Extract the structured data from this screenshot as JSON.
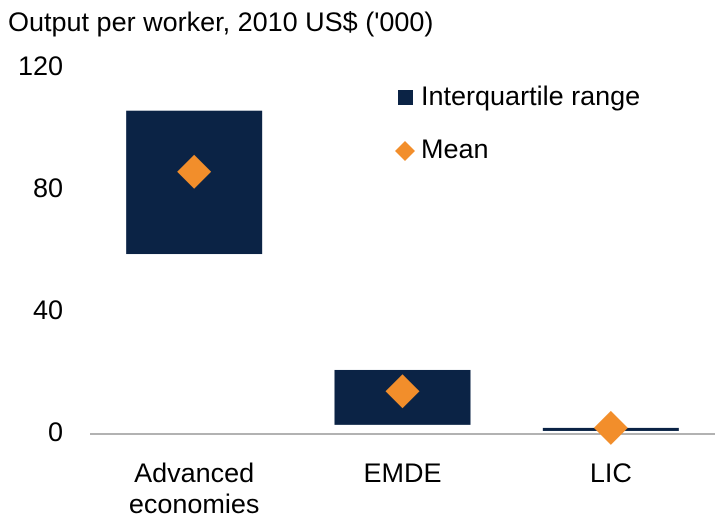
{
  "chart_data": {
    "type": "range_bar",
    "title": "Output per worker, 2010 US$ ('000)",
    "categories": [
      "Advanced economies",
      "EMDE",
      "LIC"
    ],
    "series": [
      {
        "name": "Interquartile range",
        "color": "#0b2345",
        "low": [
          59,
          3,
          1
        ],
        "high": [
          106,
          21,
          2
        ]
      },
      {
        "name": "Mean",
        "color": "#f28e2b",
        "values": [
          86,
          14,
          2
        ]
      }
    ],
    "ylim": [
      0,
      120
    ],
    "yticks": [
      0,
      40,
      80,
      120
    ],
    "grid": false
  }
}
